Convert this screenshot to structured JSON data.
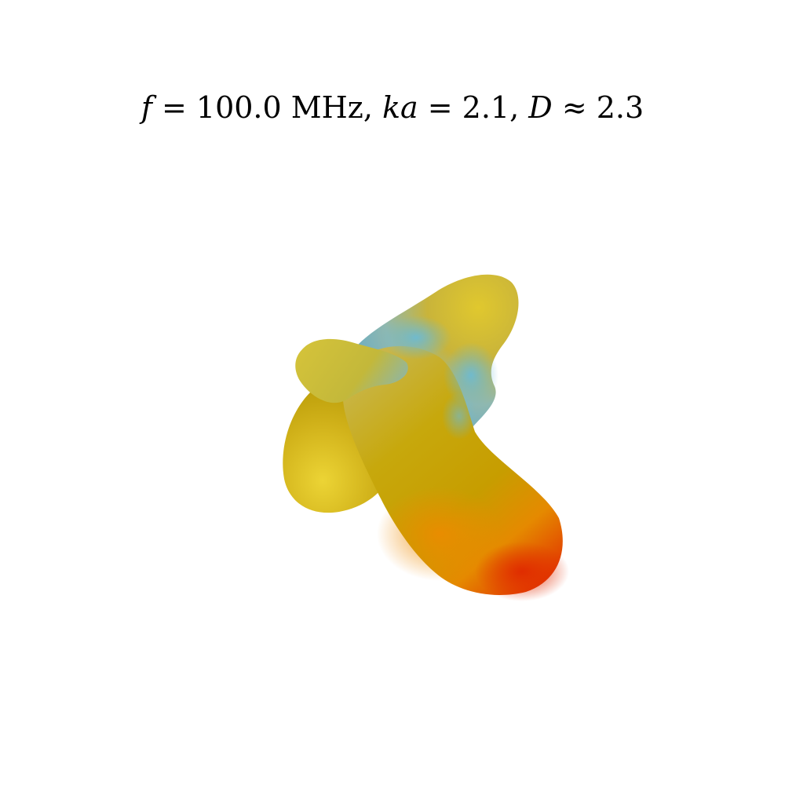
{
  "title": {
    "f_symbol": "f",
    "f_rest": " = 100.0 MHz, ",
    "ka_symbol": "ka",
    "ka_rest": " = 2.1, ",
    "d_symbol": "D",
    "d_rest": " ≈ 2.3"
  },
  "colors": {
    "background": "#ffffff",
    "low": "#6fb6cf",
    "mid": "#c9a400",
    "high_yellow": "#e2cc2a",
    "peak": "#e23a00"
  },
  "surface": {
    "description_kind": "3D radiation pattern surface",
    "colormap": [
      "#6fb6cf",
      "#c9a400",
      "#e2cc2a",
      "#ee8a00",
      "#e23a00"
    ]
  }
}
